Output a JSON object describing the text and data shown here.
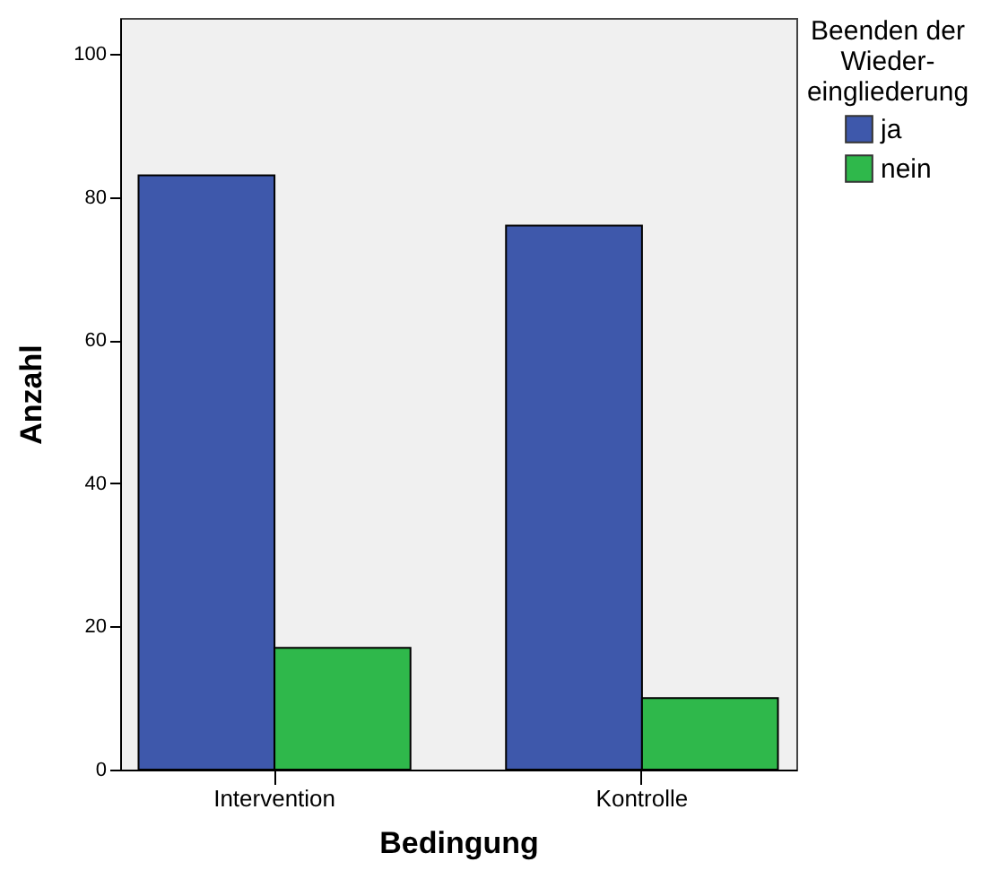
{
  "chart_data": {
    "type": "bar",
    "xlabel": "Bedingung",
    "ylabel": "Anzahl",
    "legend_title": "Beenden der Wieder-eingliederung",
    "categories": [
      "Intervention",
      "Kontrolle"
    ],
    "series": [
      {
        "name": "ja",
        "color": "#3e58ab",
        "values": [
          83,
          76
        ]
      },
      {
        "name": "nein",
        "color": "#2fb84b",
        "values": [
          17,
          10
        ]
      }
    ],
    "ylim": [
      0,
      105
    ],
    "yticks": [
      0,
      20,
      40,
      60,
      80,
      100
    ],
    "grid": false,
    "legend": "right"
  }
}
